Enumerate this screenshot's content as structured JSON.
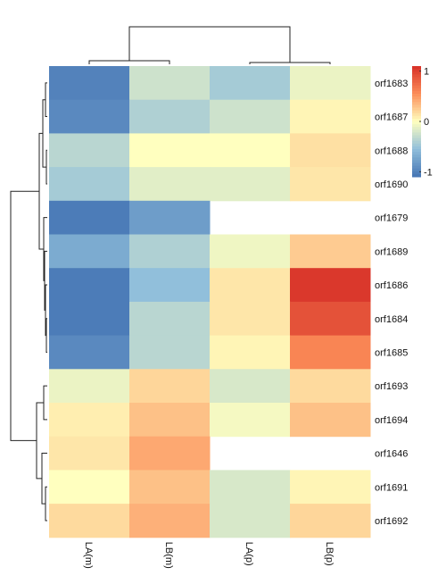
{
  "chart_data": {
    "type": "heatmap",
    "title": "",
    "rows": [
      "orf1683",
      "orf1687",
      "orf1688",
      "orf1690",
      "orf1679",
      "orf1689",
      "orf1686",
      "orf1684",
      "orf1685",
      "orf1693",
      "orf1694",
      "orf1646",
      "orf1691",
      "orf1692"
    ],
    "columns": [
      "LA(m)",
      "LB(m)",
      "LA(p)",
      "LB(p)"
    ],
    "values": [
      [
        -1.0,
        -0.25,
        -0.45,
        -0.1
      ],
      [
        -0.95,
        -0.4,
        -0.25,
        0.05
      ],
      [
        -0.35,
        0.0,
        0.0,
        0.15
      ],
      [
        -0.45,
        -0.15,
        -0.15,
        0.12
      ],
      [
        -1.05,
        -0.8,
        null,
        null
      ],
      [
        -0.7,
        -0.4,
        -0.08,
        0.25
      ],
      [
        -1.05,
        -0.55,
        0.12,
        1.05
      ],
      [
        -1.05,
        -0.35,
        0.12,
        0.9
      ],
      [
        -0.95,
        -0.35,
        0.05,
        0.6
      ],
      [
        -0.1,
        0.2,
        -0.2,
        0.18
      ],
      [
        0.08,
        0.3,
        -0.05,
        0.3
      ],
      [
        0.12,
        0.42,
        null,
        null
      ],
      [
        0.0,
        0.3,
        -0.2,
        0.05
      ],
      [
        0.18,
        0.38,
        -0.2,
        0.2
      ]
    ],
    "scale_min": -1.1,
    "scale_max": 1.1,
    "colors": {
      "low": "#4575b4",
      "mid": "#ffffbf",
      "high": "#d73027"
    },
    "legend_ticks": [
      "1",
      "0",
      "-1"
    ],
    "legend_tick_values": [
      1,
      0,
      -1
    ],
    "legend_placement": "top-right",
    "dendrogram_rows": true,
    "dendrogram_columns": true
  }
}
